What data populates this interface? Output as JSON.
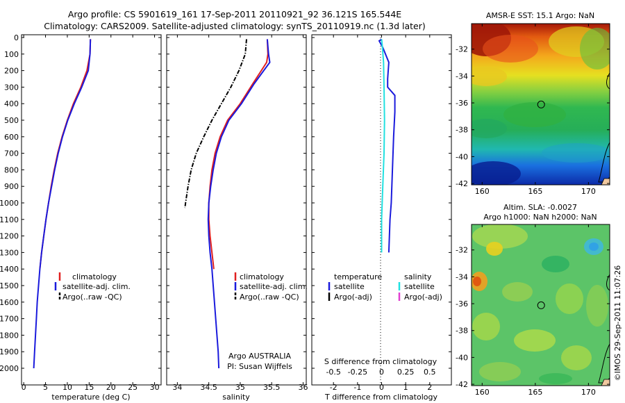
{
  "header": {
    "line1": "Argo profile: CS 5901619_161 17-Sep-2011 20110921_92 36.121S 165.544E",
    "line2": "Climatology: CARS2009. Satellite-adjusted climatology: synTS_20110919.nc (1.3d later)"
  },
  "side_label": "©IMOS 29-Sep-2011 11:07:26",
  "chart_data": [
    {
      "type": "line",
      "id": "temperature",
      "xlabel": "temperature (deg C)",
      "xlim": [
        -0.5,
        31.5
      ],
      "xticks": [
        0,
        5,
        10,
        15,
        20,
        25,
        30
      ],
      "ylim": [
        2080,
        0
      ],
      "yticks": [
        0,
        100,
        200,
        300,
        400,
        500,
        600,
        700,
        800,
        900,
        1000,
        1100,
        1200,
        1300,
        1400,
        1500,
        1600,
        1700,
        1800,
        1900,
        2000
      ],
      "legend": [
        "climatology",
        "satellite-adj. clim.",
        "Argo(..raw -QC)"
      ],
      "series": [
        {
          "name": "climatology",
          "color": "#e02020",
          "style": "solid",
          "points": [
            [
              15.3,
              10
            ],
            [
              15.2,
              100
            ],
            [
              14.5,
              200
            ],
            [
              13.1,
              300
            ],
            [
              11.4,
              400
            ],
            [
              10.0,
              500
            ],
            [
              8.8,
              600
            ],
            [
              7.8,
              700
            ],
            [
              7.0,
              800
            ],
            [
              6.3,
              900
            ],
            [
              5.7,
              1000
            ],
            [
              5.1,
              1100
            ],
            [
              4.6,
              1200
            ],
            [
              4.1,
              1300
            ],
            [
              3.7,
              1400
            ]
          ]
        },
        {
          "name": "satellite-adj. clim.",
          "color": "#1a1adc",
          "style": "solid",
          "points": [
            [
              15.3,
              10
            ],
            [
              15.2,
              100
            ],
            [
              14.8,
              200
            ],
            [
              13.3,
              300
            ],
            [
              11.6,
              400
            ],
            [
              10.1,
              500
            ],
            [
              8.9,
              600
            ],
            [
              7.9,
              700
            ],
            [
              7.1,
              800
            ],
            [
              6.4,
              900
            ],
            [
              5.7,
              1000
            ],
            [
              5.1,
              1100
            ],
            [
              4.6,
              1200
            ],
            [
              4.1,
              1300
            ],
            [
              3.7,
              1400
            ],
            [
              3.4,
              1500
            ],
            [
              3.1,
              1600
            ],
            [
              2.9,
              1700
            ],
            [
              2.7,
              1800
            ],
            [
              2.5,
              1900
            ],
            [
              2.3,
              2000
            ]
          ]
        }
      ]
    },
    {
      "type": "line",
      "id": "salinity",
      "xlabel": "salinity",
      "xlim": [
        33.83,
        36.05
      ],
      "xticks": [
        34,
        34.5,
        35,
        35.5,
        36
      ],
      "ylim": [
        2080,
        0
      ],
      "legend": [
        "climatology",
        "satellite-adj. clim.",
        "Argo(..raw -QC)"
      ],
      "annotation": [
        "Argo AUSTRALIA",
        "PI: Susan Wijffels"
      ],
      "series": [
        {
          "name": "climatology",
          "color": "#e02020",
          "style": "solid",
          "points": [
            [
              35.43,
              10
            ],
            [
              35.44,
              100
            ],
            [
              35.42,
              150
            ],
            [
              35.2,
              280
            ],
            [
              35.0,
              400
            ],
            [
              34.8,
              500
            ],
            [
              34.68,
              600
            ],
            [
              34.6,
              700
            ],
            [
              34.55,
              800
            ],
            [
              34.52,
              900
            ],
            [
              34.5,
              1000
            ],
            [
              34.5,
              1100
            ],
            [
              34.52,
              1200
            ],
            [
              34.55,
              1300
            ],
            [
              34.58,
              1400
            ]
          ]
        },
        {
          "name": "satellite-adj. clim.",
          "color": "#1a1adc",
          "style": "solid",
          "points": [
            [
              35.43,
              10
            ],
            [
              35.45,
              100
            ],
            [
              35.47,
              150
            ],
            [
              35.22,
              280
            ],
            [
              35.02,
              400
            ],
            [
              34.82,
              500
            ],
            [
              34.7,
              600
            ],
            [
              34.62,
              700
            ],
            [
              34.57,
              800
            ],
            [
              34.53,
              900
            ],
            [
              34.5,
              1000
            ],
            [
              34.49,
              1100
            ],
            [
              34.5,
              1200
            ],
            [
              34.52,
              1300
            ],
            [
              34.55,
              1400
            ],
            [
              34.57,
              1500
            ],
            [
              34.59,
              1600
            ],
            [
              34.61,
              1700
            ],
            [
              34.63,
              1800
            ],
            [
              34.65,
              1900
            ],
            [
              34.66,
              2000
            ]
          ]
        },
        {
          "name": "Argo(..raw -QC)",
          "color": "#000000",
          "style": "dashdot",
          "points": [
            [
              35.1,
              10
            ],
            [
              35.08,
              100
            ],
            [
              34.98,
              200
            ],
            [
              34.85,
              300
            ],
            [
              34.7,
              400
            ],
            [
              34.55,
              500
            ],
            [
              34.42,
              600
            ],
            [
              34.3,
              700
            ],
            [
              34.22,
              800
            ],
            [
              34.17,
              900
            ],
            [
              34.13,
              1000
            ],
            [
              34.12,
              1030
            ]
          ]
        }
      ]
    },
    {
      "type": "line",
      "id": "difference",
      "xlabel": "T difference from climatology",
      "top_label": "S difference from climatology",
      "xlim": [
        -2.9,
        2.9
      ],
      "xticks_T": [
        -2,
        -1,
        0,
        1,
        2
      ],
      "xticks_S": [
        "-0.5",
        "-0.25",
        "0",
        "0.25",
        "0.5"
      ],
      "xticks_S_pos": [
        -2,
        -1,
        0,
        1,
        2
      ],
      "legend_temperature": [
        "temperature",
        "satellite",
        "Argo(-adj)"
      ],
      "legend_salinity": [
        "salinity",
        "satellite",
        "Argo(-adj)"
      ],
      "series": [
        {
          "name": "temperature satellite",
          "color": "#1a1adc",
          "style": "solid",
          "points": [
            [
              0.0,
              10
            ],
            [
              -0.1,
              20
            ],
            [
              0.05,
              60
            ],
            [
              0.3,
              150
            ],
            [
              0.25,
              250
            ],
            [
              0.25,
              300
            ],
            [
              0.55,
              350
            ],
            [
              0.55,
              450
            ],
            [
              0.5,
              600
            ],
            [
              0.45,
              800
            ],
            [
              0.4,
              1000
            ],
            [
              0.35,
              1100
            ],
            [
              0.3,
              1300
            ]
          ]
        },
        {
          "name": "salinity satellite",
          "color": "#20e0e0",
          "style": "solid",
          "points": [
            [
              0.0,
              10
            ],
            [
              0.03,
              50
            ],
            [
              0.08,
              150
            ],
            [
              0.1,
              300
            ],
            [
              0.12,
              500
            ],
            [
              0.1,
              700
            ],
            [
              0.05,
              900
            ],
            [
              0.0,
              1100
            ],
            [
              0.0,
              1300
            ]
          ]
        }
      ]
    },
    {
      "type": "heatmap",
      "id": "sst_map",
      "title": "AMSR-E SST: 15.1 Argo: NaN",
      "xticks": [
        160,
        165,
        170
      ],
      "yticks": [
        -32,
        -34,
        -36,
        -38,
        -40,
        -42
      ],
      "xlim": [
        159,
        172
      ],
      "ylim": [
        -42.1,
        -30.1
      ],
      "marker": [
        165.544,
        -36.121
      ]
    },
    {
      "type": "heatmap",
      "id": "sla_map",
      "title_line1": "Altim. SLA: -0.0027",
      "title_line2": "Argo h1000: NaN h2000: NaN",
      "xticks": [
        160,
        165,
        170
      ],
      "yticks": [
        -32,
        -34,
        -36,
        -38,
        -40,
        -42
      ],
      "xlim": [
        159,
        172
      ],
      "ylim": [
        -42.1,
        -30.1
      ],
      "marker": [
        165.544,
        -36.121
      ]
    }
  ]
}
